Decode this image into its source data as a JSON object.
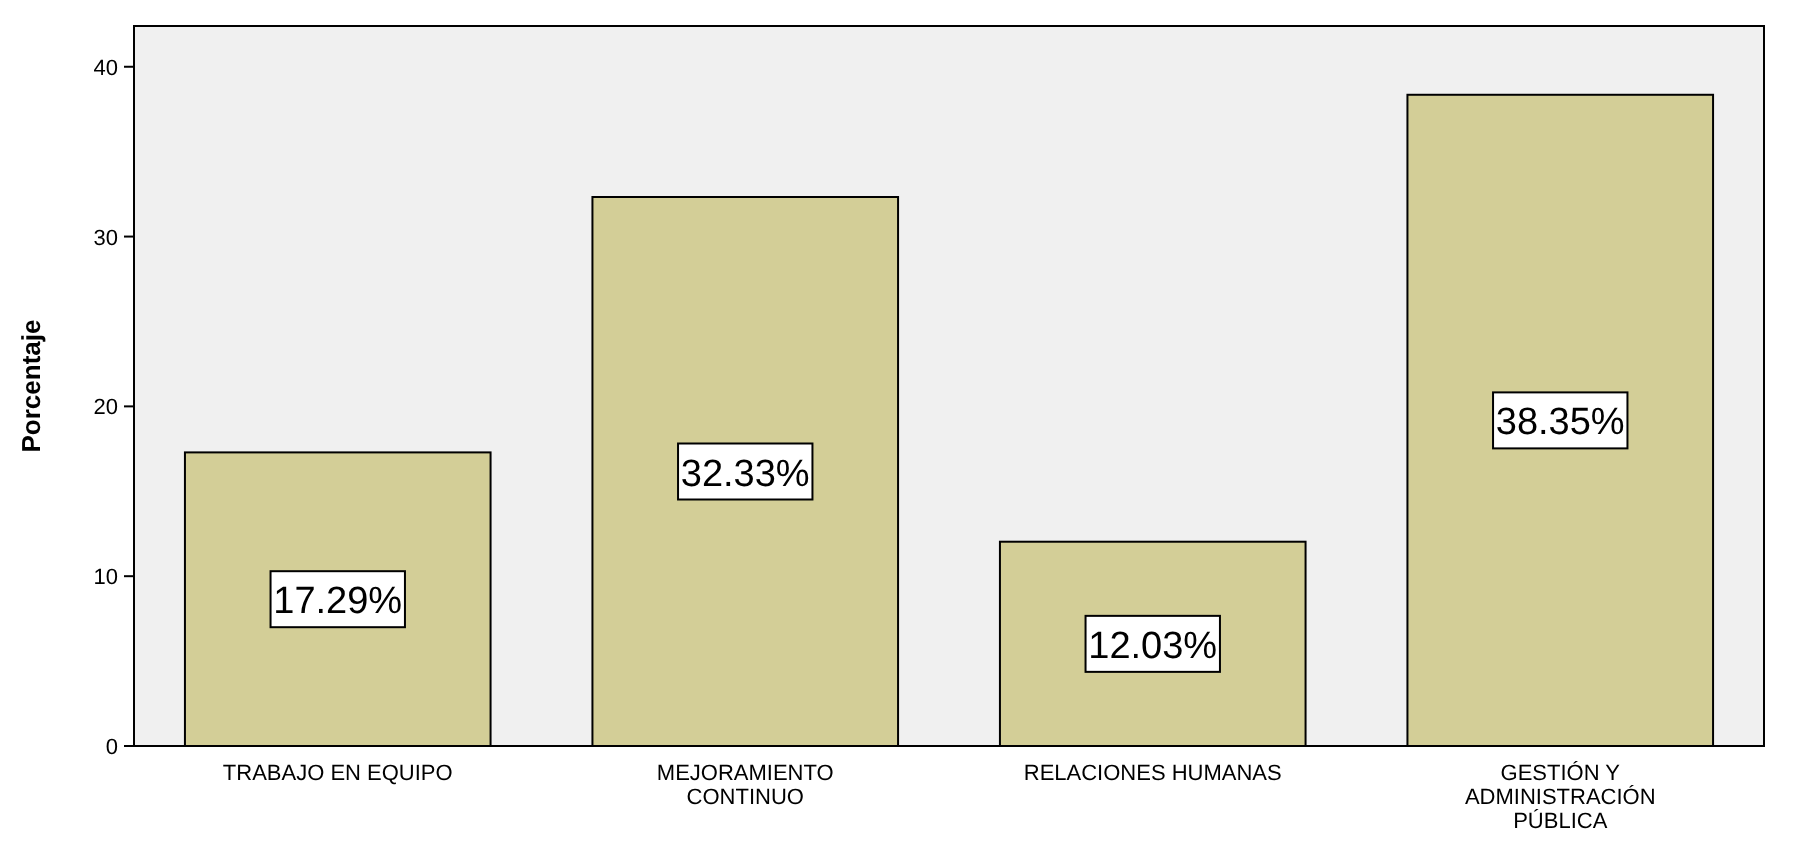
{
  "chart_data": {
    "type": "bar",
    "ylabel": "Porcentaje",
    "categories": [
      "TRABAJO EN EQUIPO",
      "MEJORAMIENTO\nCONTINUO",
      "RELACIONES HUMANAS",
      "GESTIÓN Y\nADMINISTRACIÓN\nPÚBLICA"
    ],
    "values": [
      17.29,
      32.33,
      12.03,
      38.35
    ],
    "value_labels": [
      "17.29%",
      "32.33%",
      "12.03%",
      "38.35%"
    ],
    "color": "#d3ce97",
    "ylim": [
      0,
      42.4
    ],
    "yticks": [
      0,
      10,
      20,
      30,
      40
    ],
    "grid": false
  }
}
